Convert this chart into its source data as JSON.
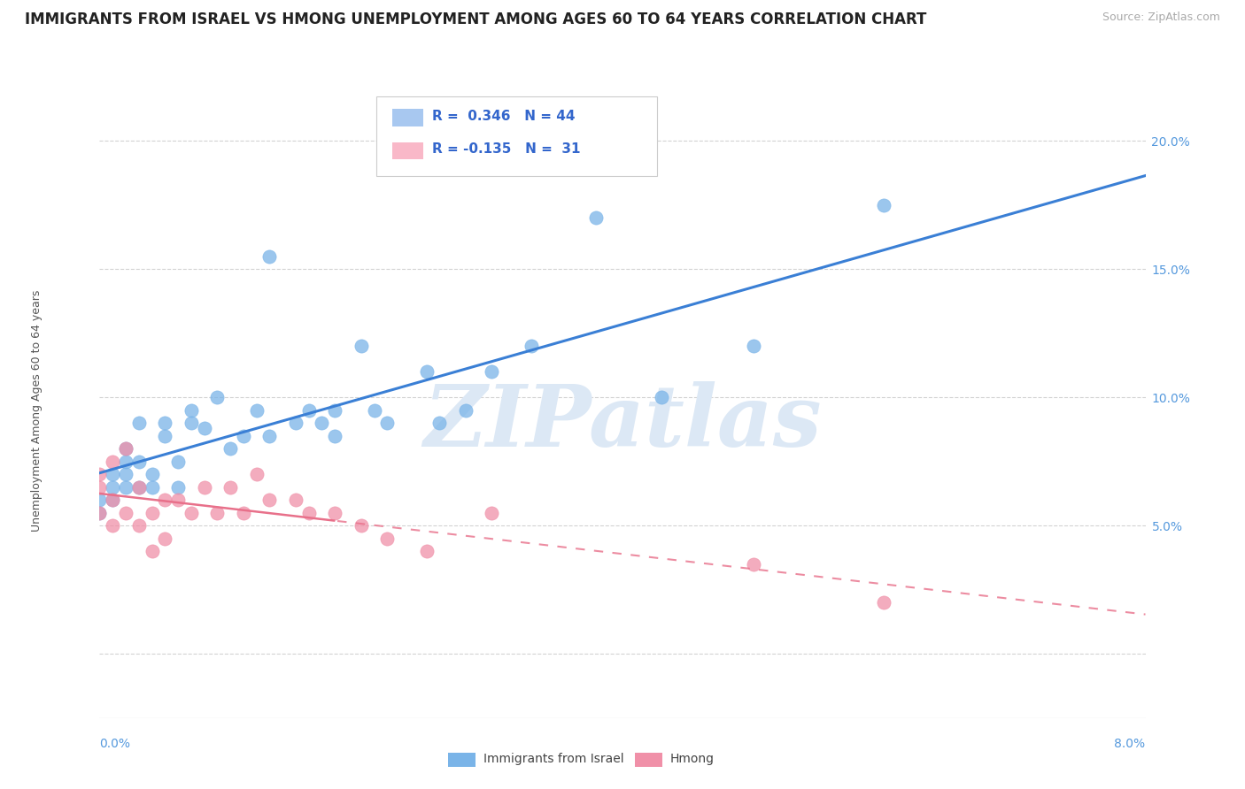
{
  "title": "IMMIGRANTS FROM ISRAEL VS HMONG UNEMPLOYMENT AMONG AGES 60 TO 64 YEARS CORRELATION CHART",
  "source_text": "Source: ZipAtlas.com",
  "ylabel": "Unemployment Among Ages 60 to 64 years",
  "xlim": [
    0.0,
    0.08
  ],
  "ylim": [
    -0.025,
    0.215
  ],
  "yticks": [
    0.0,
    0.05,
    0.1,
    0.15,
    0.2
  ],
  "ytick_labels": [
    "",
    "5.0%",
    "10.0%",
    "15.0%",
    "20.0%"
  ],
  "legend_items": [
    {
      "label": "R =  0.346   N = 44",
      "color": "#a8c8f0"
    },
    {
      "label": "R = -0.135   N =  31",
      "color": "#f9b8c8"
    }
  ],
  "blue_scatter_color": "#7ab4e8",
  "pink_scatter_color": "#f090a8",
  "blue_line_color": "#3a7fd5",
  "pink_line_color": "#e8708a",
  "grid_color": "#c8c8c8",
  "watermark": "ZIPatlas",
  "watermark_color": "#dce8f5",
  "title_fontsize": 12,
  "axis_label_fontsize": 9,
  "tick_fontsize": 10,
  "israel_x": [
    0.0,
    0.0,
    0.001,
    0.001,
    0.001,
    0.002,
    0.002,
    0.002,
    0.002,
    0.003,
    0.003,
    0.003,
    0.004,
    0.004,
    0.005,
    0.005,
    0.006,
    0.006,
    0.007,
    0.007,
    0.008,
    0.009,
    0.01,
    0.011,
    0.012,
    0.013,
    0.013,
    0.015,
    0.016,
    0.017,
    0.018,
    0.018,
    0.02,
    0.021,
    0.022,
    0.025,
    0.026,
    0.028,
    0.03,
    0.033,
    0.038,
    0.043,
    0.05,
    0.06
  ],
  "israel_y": [
    0.06,
    0.055,
    0.07,
    0.065,
    0.06,
    0.08,
    0.075,
    0.07,
    0.065,
    0.09,
    0.075,
    0.065,
    0.065,
    0.07,
    0.085,
    0.09,
    0.075,
    0.065,
    0.095,
    0.09,
    0.088,
    0.1,
    0.08,
    0.085,
    0.095,
    0.085,
    0.155,
    0.09,
    0.095,
    0.09,
    0.085,
    0.095,
    0.12,
    0.095,
    0.09,
    0.11,
    0.09,
    0.095,
    0.11,
    0.12,
    0.17,
    0.1,
    0.12,
    0.175
  ],
  "hmong_x": [
    0.0,
    0.0,
    0.0,
    0.001,
    0.001,
    0.001,
    0.002,
    0.002,
    0.003,
    0.003,
    0.004,
    0.004,
    0.005,
    0.005,
    0.006,
    0.007,
    0.008,
    0.009,
    0.01,
    0.011,
    0.012,
    0.013,
    0.015,
    0.016,
    0.018,
    0.02,
    0.022,
    0.025,
    0.03,
    0.05,
    0.06
  ],
  "hmong_y": [
    0.07,
    0.065,
    0.055,
    0.075,
    0.06,
    0.05,
    0.08,
    0.055,
    0.065,
    0.05,
    0.055,
    0.04,
    0.06,
    0.045,
    0.06,
    0.055,
    0.065,
    0.055,
    0.065,
    0.055,
    0.07,
    0.06,
    0.06,
    0.055,
    0.055,
    0.05,
    0.045,
    0.04,
    0.055,
    0.035,
    0.02
  ],
  "background_color": "#ffffff"
}
